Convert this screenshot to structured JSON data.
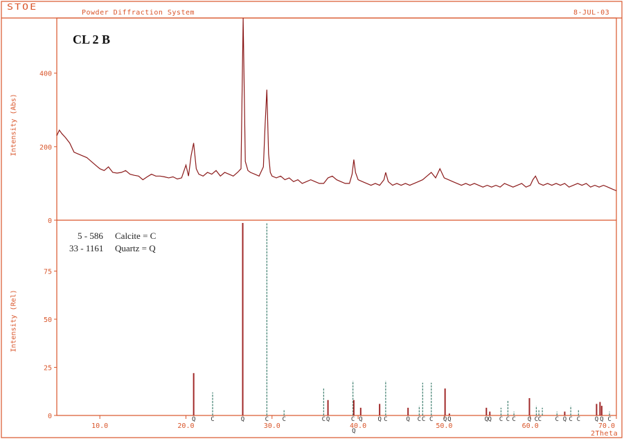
{
  "header": {
    "logo": "STOE",
    "title": "Powder Diffraction System",
    "date": "8-JUL-03"
  },
  "sample_label": "CL 2 B",
  "legend": [
    {
      "id": "5 - 586",
      "phase": "Calcite = C"
    },
    {
      "id": "33 - 1161",
      "phase": "Quartz = Q"
    }
  ],
  "colors": {
    "axis": "#d9552a",
    "pattern": "#8b1a1a",
    "calcite": "#3f7f6f",
    "quartz": "#a02828"
  },
  "chart_data": [
    {
      "type": "line",
      "ylabel": "Intensity (Abs)",
      "xlim": [
        5,
        70
      ],
      "ylim": [
        0,
        550
      ],
      "y_ticks": [
        0,
        200,
        400
      ],
      "x": [
        5.0,
        5.3,
        5.6,
        6.0,
        6.5,
        7.0,
        7.5,
        8.0,
        8.5,
        9.0,
        9.5,
        10.0,
        10.5,
        11.0,
        11.5,
        12.0,
        12.5,
        13.0,
        13.5,
        14.0,
        14.5,
        15.0,
        15.5,
        16.0,
        16.5,
        17.0,
        17.5,
        18.0,
        18.5,
        19.0,
        19.5,
        20.0,
        20.3,
        20.6,
        20.9,
        21.2,
        21.5,
        22.0,
        22.5,
        23.0,
        23.5,
        24.0,
        24.5,
        25.0,
        25.5,
        26.0,
        26.4,
        26.65,
        26.9,
        27.2,
        27.5,
        28.0,
        28.5,
        29.0,
        29.2,
        29.4,
        29.6,
        29.8,
        30.0,
        30.5,
        31.0,
        31.5,
        32.0,
        32.5,
        33.0,
        33.5,
        34.0,
        34.5,
        35.0,
        35.5,
        36.0,
        36.5,
        37.0,
        37.5,
        38.0,
        38.5,
        39.0,
        39.3,
        39.5,
        39.7,
        40.0,
        40.5,
        41.0,
        41.5,
        42.0,
        42.5,
        43.0,
        43.2,
        43.5,
        44.0,
        44.5,
        45.0,
        45.5,
        46.0,
        46.5,
        47.0,
        47.5,
        48.0,
        48.5,
        49.0,
        49.5,
        50.0,
        50.5,
        51.0,
        51.5,
        52.0,
        52.5,
        53.0,
        53.5,
        54.0,
        54.5,
        55.0,
        55.5,
        56.0,
        56.5,
        57.0,
        57.5,
        58.0,
        58.5,
        59.0,
        59.5,
        60.0,
        60.3,
        60.6,
        61.0,
        61.5,
        62.0,
        62.5,
        63.0,
        63.5,
        64.0,
        64.5,
        65.0,
        65.5,
        66.0,
        66.5,
        67.0,
        67.5,
        68.0,
        68.5,
        69.0,
        69.5,
        70.0
      ],
      "y": [
        230,
        245,
        235,
        225,
        210,
        185,
        180,
        175,
        170,
        160,
        150,
        140,
        135,
        145,
        130,
        128,
        130,
        135,
        125,
        122,
        120,
        110,
        118,
        125,
        120,
        120,
        118,
        115,
        118,
        112,
        115,
        150,
        120,
        175,
        210,
        140,
        125,
        120,
        130,
        125,
        135,
        120,
        130,
        125,
        120,
        130,
        140,
        550,
        160,
        135,
        130,
        125,
        120,
        145,
        260,
        355,
        180,
        130,
        120,
        115,
        120,
        110,
        115,
        105,
        110,
        100,
        105,
        110,
        105,
        100,
        100,
        115,
        120,
        110,
        105,
        100,
        100,
        125,
        165,
        130,
        110,
        105,
        100,
        95,
        100,
        95,
        110,
        130,
        105,
        95,
        100,
        95,
        100,
        95,
        100,
        105,
        110,
        120,
        130,
        115,
        140,
        115,
        110,
        105,
        100,
        95,
        100,
        95,
        100,
        95,
        90,
        95,
        90,
        95,
        90,
        100,
        95,
        90,
        95,
        100,
        90,
        95,
        110,
        120,
        100,
        95,
        100,
        95,
        100,
        95,
        100,
        90,
        95,
        100,
        95,
        100,
        90,
        95,
        90,
        95,
        90,
        85,
        80
      ]
    },
    {
      "type": "bar",
      "ylabel": "Intensity (Rel)",
      "xlabel": "2Theta",
      "xlim": [
        5,
        70
      ],
      "ylim": [
        0,
        100
      ],
      "y_ticks": [
        0,
        25,
        50,
        75
      ],
      "x_ticks": [
        10.0,
        20.0,
        30.0,
        40.0,
        50.0,
        60.0,
        70.0
      ],
      "series": [
        {
          "name": "Calcite = C",
          "values": [
            {
              "x": 23.1,
              "y": 12
            },
            {
              "x": 29.4,
              "y": 100
            },
            {
              "x": 31.4,
              "y": 3
            },
            {
              "x": 36.0,
              "y": 14
            },
            {
              "x": 39.4,
              "y": 18
            },
            {
              "x": 43.2,
              "y": 18
            },
            {
              "x": 47.1,
              "y": 5
            },
            {
              "x": 47.5,
              "y": 17
            },
            {
              "x": 48.5,
              "y": 17
            },
            {
              "x": 56.6,
              "y": 4
            },
            {
              "x": 57.4,
              "y": 8
            },
            {
              "x": 58.1,
              "y": 2
            },
            {
              "x": 60.7,
              "y": 5
            },
            {
              "x": 61.0,
              "y": 3
            },
            {
              "x": 61.4,
              "y": 4
            },
            {
              "x": 63.1,
              "y": 2
            },
            {
              "x": 64.7,
              "y": 5
            },
            {
              "x": 65.6,
              "y": 3
            },
            {
              "x": 69.2,
              "y": 2
            }
          ]
        },
        {
          "name": "Quartz = Q",
          "values": [
            {
              "x": 20.9,
              "y": 22
            },
            {
              "x": 26.6,
              "y": 100
            },
            {
              "x": 36.5,
              "y": 8
            },
            {
              "x": 39.5,
              "y": 8
            },
            {
              "x": 40.3,
              "y": 4
            },
            {
              "x": 42.5,
              "y": 6
            },
            {
              "x": 45.8,
              "y": 4
            },
            {
              "x": 50.1,
              "y": 14
            },
            {
              "x": 50.6,
              "y": 1
            },
            {
              "x": 54.9,
              "y": 4
            },
            {
              "x": 55.3,
              "y": 2
            },
            {
              "x": 59.9,
              "y": 9
            },
            {
              "x": 64.0,
              "y": 2
            },
            {
              "x": 67.7,
              "y": 6
            },
            {
              "x": 68.1,
              "y": 7
            },
            {
              "x": 68.3,
              "y": 5
            }
          ]
        }
      ],
      "labels": [
        {
          "x": 20.9,
          "t": "Q"
        },
        {
          "x": 23.1,
          "t": "C"
        },
        {
          "x": 26.6,
          "t": "Q"
        },
        {
          "x": 29.4,
          "t": "C"
        },
        {
          "x": 31.4,
          "t": "C"
        },
        {
          "x": 36.0,
          "t": "C"
        },
        {
          "x": 36.5,
          "t": "Q"
        },
        {
          "x": 39.4,
          "t": "C"
        },
        {
          "x": 39.5,
          "t": "Q",
          "row": 2
        },
        {
          "x": 40.3,
          "t": "Q"
        },
        {
          "x": 42.5,
          "t": "Q"
        },
        {
          "x": 43.2,
          "t": "C"
        },
        {
          "x": 45.8,
          "t": "Q"
        },
        {
          "x": 47.1,
          "t": "C"
        },
        {
          "x": 47.6,
          "t": "C"
        },
        {
          "x": 48.5,
          "t": "C"
        },
        {
          "x": 50.1,
          "t": "Q"
        },
        {
          "x": 50.6,
          "t": "Q"
        },
        {
          "x": 54.9,
          "t": "Q"
        },
        {
          "x": 55.3,
          "t": "Q"
        },
        {
          "x": 56.6,
          "t": "C"
        },
        {
          "x": 57.4,
          "t": "C"
        },
        {
          "x": 58.1,
          "t": "C"
        },
        {
          "x": 59.9,
          "t": "Q"
        },
        {
          "x": 60.7,
          "t": "C"
        },
        {
          "x": 61.1,
          "t": "C"
        },
        {
          "x": 63.1,
          "t": "C"
        },
        {
          "x": 64.0,
          "t": "Q"
        },
        {
          "x": 64.7,
          "t": "C"
        },
        {
          "x": 65.6,
          "t": "C"
        },
        {
          "x": 67.7,
          "t": "Q"
        },
        {
          "x": 68.3,
          "t": "Q"
        },
        {
          "x": 69.2,
          "t": "C"
        }
      ]
    }
  ]
}
